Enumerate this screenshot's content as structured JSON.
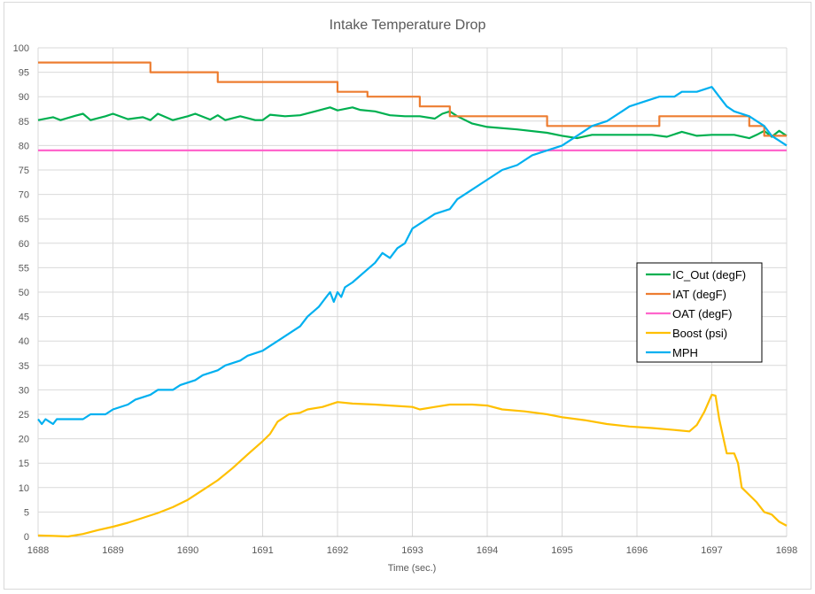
{
  "chart_data": {
    "type": "line",
    "title": "Intake Temperature Drop",
    "xlabel": "Time (sec.)",
    "ylabel": "",
    "xlim": [
      1688,
      1698
    ],
    "ylim": [
      0,
      100
    ],
    "xticks": [
      1688,
      1689,
      1690,
      1691,
      1692,
      1693,
      1694,
      1695,
      1696,
      1697,
      1698
    ],
    "yticks": [
      0,
      5,
      10,
      15,
      20,
      25,
      30,
      35,
      40,
      45,
      50,
      55,
      60,
      65,
      70,
      75,
      80,
      85,
      90,
      95,
      100
    ],
    "grid": true,
    "legend_position": "center-right",
    "series": [
      {
        "name": "IC_Out (degF)",
        "color": "#00B050",
        "x": [
          1688.0,
          1688.2,
          1688.3,
          1688.5,
          1688.6,
          1688.7,
          1688.9,
          1689.0,
          1689.2,
          1689.4,
          1689.5,
          1689.6,
          1689.8,
          1690.0,
          1690.1,
          1690.3,
          1690.4,
          1690.5,
          1690.7,
          1690.9,
          1691.0,
          1691.1,
          1691.3,
          1691.5,
          1691.7,
          1691.9,
          1692.0,
          1692.2,
          1692.3,
          1692.5,
          1692.7,
          1692.9,
          1693.1,
          1693.3,
          1693.4,
          1693.5,
          1693.6,
          1693.8,
          1694.0,
          1694.4,
          1694.8,
          1695.0,
          1695.2,
          1695.4,
          1695.8,
          1696.2,
          1696.4,
          1696.6,
          1696.8,
          1697.0,
          1697.3,
          1697.5,
          1697.6,
          1697.7,
          1697.8,
          1697.9,
          1698.0
        ],
        "values": [
          85.2,
          85.8,
          85.2,
          86.1,
          86.5,
          85.2,
          86.0,
          86.5,
          85.4,
          85.8,
          85.2,
          86.5,
          85.2,
          86.0,
          86.5,
          85.3,
          86.2,
          85.2,
          86.0,
          85.2,
          85.2,
          86.3,
          86.0,
          86.2,
          87.0,
          87.8,
          87.2,
          87.8,
          87.3,
          87.0,
          86.2,
          86.0,
          86.0,
          85.5,
          86.5,
          87.0,
          86.0,
          84.5,
          83.8,
          83.3,
          82.6,
          82.0,
          81.5,
          82.2,
          82.2,
          82.2,
          81.8,
          82.8,
          82.0,
          82.2,
          82.2,
          81.5,
          82.2,
          83.0,
          81.8,
          83.0,
          82.0
        ]
      },
      {
        "name": "IAT (degF)",
        "color": "#ED7D31",
        "x": [
          1688.0,
          1689.5,
          1689.5,
          1690.4,
          1690.4,
          1692.0,
          1692.0,
          1692.4,
          1692.4,
          1693.1,
          1693.1,
          1693.5,
          1693.5,
          1694.8,
          1694.8,
          1696.3,
          1696.3,
          1697.5,
          1697.5,
          1697.7,
          1697.7,
          1698.0
        ],
        "values": [
          97,
          97,
          95,
          95,
          93,
          93,
          91,
          91,
          90,
          90,
          88,
          88,
          86,
          86,
          84,
          84,
          86,
          86,
          84,
          84,
          82,
          82
        ]
      },
      {
        "name": "OAT (degF)",
        "color": "#FF66CC",
        "x": [
          1688.0,
          1698.0
        ],
        "values": [
          79,
          79
        ]
      },
      {
        "name": "Boost (psi)",
        "color": "#FFC000",
        "x": [
          1688.0,
          1688.2,
          1688.4,
          1688.6,
          1688.8,
          1689.0,
          1689.2,
          1689.4,
          1689.6,
          1689.8,
          1690.0,
          1690.2,
          1690.4,
          1690.6,
          1690.8,
          1691.0,
          1691.1,
          1691.2,
          1691.35,
          1691.5,
          1691.6,
          1691.8,
          1692.0,
          1692.2,
          1692.5,
          1692.8,
          1693.0,
          1693.1,
          1693.3,
          1693.5,
          1693.8,
          1694.0,
          1694.2,
          1694.5,
          1694.8,
          1695.0,
          1695.3,
          1695.6,
          1695.9,
          1696.2,
          1696.5,
          1696.7,
          1696.8,
          1696.9,
          1697.0,
          1697.05,
          1697.1,
          1697.2,
          1697.3,
          1697.35,
          1697.4,
          1697.5,
          1697.6,
          1697.7,
          1697.8,
          1697.9,
          1698.0
        ],
        "values": [
          0.2,
          0.1,
          0.0,
          0.5,
          1.3,
          2.0,
          2.8,
          3.8,
          4.8,
          6.0,
          7.5,
          9.5,
          11.5,
          14.0,
          16.8,
          19.5,
          21.0,
          23.5,
          25.0,
          25.3,
          26.0,
          26.5,
          27.5,
          27.2,
          27.0,
          26.7,
          26.5,
          26.0,
          26.5,
          27.0,
          27.0,
          26.8,
          26.0,
          25.6,
          25.0,
          24.4,
          23.8,
          23.0,
          22.5,
          22.2,
          21.8,
          21.5,
          22.8,
          25.5,
          29.0,
          28.8,
          24.0,
          17.0,
          17.0,
          15.0,
          10.0,
          8.5,
          7.0,
          5.0,
          4.5,
          3.0,
          2.2
        ]
      },
      {
        "name": "MPH",
        "color": "#00B0F0",
        "x": [
          1688.0,
          1688.05,
          1688.1,
          1688.15,
          1688.2,
          1688.25,
          1688.3,
          1688.6,
          1688.7,
          1688.9,
          1689.0,
          1689.2,
          1689.3,
          1689.5,
          1689.6,
          1689.8,
          1689.9,
          1690.1,
          1690.2,
          1690.4,
          1690.5,
          1690.7,
          1690.8,
          1691.0,
          1691.1,
          1691.2,
          1691.3,
          1691.5,
          1691.6,
          1691.75,
          1691.85,
          1691.9,
          1691.95,
          1692.0,
          1692.05,
          1692.1,
          1692.2,
          1692.35,
          1692.5,
          1692.6,
          1692.7,
          1692.8,
          1692.9,
          1693.0,
          1693.2,
          1693.3,
          1693.5,
          1693.6,
          1693.8,
          1694.0,
          1694.2,
          1694.4,
          1694.6,
          1694.8,
          1695.0,
          1695.1,
          1695.2,
          1695.4,
          1695.6,
          1695.8,
          1695.9,
          1696.1,
          1696.3,
          1696.5,
          1696.6,
          1696.8,
          1697.0,
          1697.1,
          1697.2,
          1697.3,
          1697.5,
          1697.6,
          1697.7,
          1697.8,
          1697.9,
          1698.0
        ],
        "values": [
          24,
          23,
          24,
          23.5,
          23,
          24,
          24,
          24,
          25,
          25,
          26,
          27,
          28,
          29,
          30,
          30,
          31,
          32,
          33,
          34,
          35,
          36,
          37,
          38,
          39,
          40,
          41,
          43,
          45,
          47,
          49,
          50,
          48,
          50,
          49,
          51,
          52,
          54,
          56,
          58,
          57,
          59,
          60,
          63,
          65,
          66,
          67,
          69,
          71,
          73,
          75,
          76,
          78,
          79,
          80,
          81,
          82,
          84,
          85,
          87,
          88,
          89,
          90,
          90,
          91,
          91,
          92,
          90,
          88,
          87,
          86,
          85,
          84,
          82,
          81,
          80
        ]
      }
    ]
  }
}
